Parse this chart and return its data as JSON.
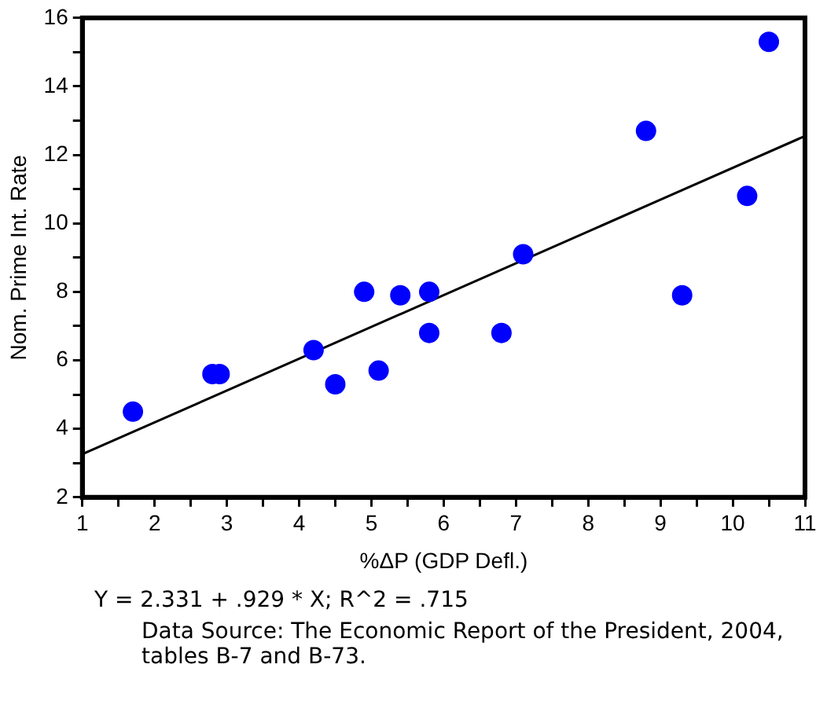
{
  "chart_data": {
    "type": "scatter",
    "xlabel": "%ΔP (GDP Defl.)",
    "ylabel": "Nom. Prime Int. Rate",
    "series": [
      {
        "marker": "circle",
        "color": "#0000ff",
        "x": [
          1.7,
          2.8,
          2.9,
          4.2,
          4.5,
          5.1,
          4.9,
          5.4,
          5.8,
          5.8,
          6.8,
          7.1,
          8.8,
          9.3,
          10.2,
          10.5
        ],
        "values": [
          4.5,
          5.6,
          5.6,
          6.3,
          5.3,
          5.7,
          8.0,
          7.9,
          8.0,
          6.8,
          6.8,
          9.1,
          12.7,
          7.9,
          10.8,
          15.3
        ]
      },
      {
        "type": "line",
        "color": "#000000",
        "x": [
          1,
          11
        ],
        "values": [
          3.26,
          12.55
        ]
      }
    ],
    "xlim": [
      1,
      11
    ],
    "ylim": [
      2,
      16
    ],
    "xticks": [
      1,
      {
        "value": 1.5,
        "label": null
      },
      2,
      {
        "value": 2.5,
        "label": null
      },
      3,
      {
        "value": 3.5,
        "label": null
      },
      4,
      {
        "value": 4.5,
        "label": null
      },
      5,
      {
        "value": 5.5,
        "label": null
      },
      6,
      {
        "value": 6.5,
        "label": null
      },
      7,
      {
        "value": 7.5,
        "label": null
      },
      8,
      {
        "value": 8.5,
        "label": null
      },
      9,
      {
        "value": 9.5,
        "label": null
      },
      10,
      {
        "value": 10.5,
        "label": null
      },
      11
    ],
    "yticks": [
      2,
      {
        "value": 3,
        "label": null
      },
      4,
      {
        "value": 5,
        "label": null
      },
      6,
      {
        "value": 7,
        "label": null
      },
      8,
      {
        "value": 9,
        "label": null
      },
      10,
      {
        "value": 11,
        "label": null
      },
      12,
      {
        "value": 13,
        "label": null
      },
      14,
      {
        "value": 15,
        "label": null
      },
      16
    ],
    "grid": false,
    "legend": false,
    "line_style": "solid",
    "annotations": [
      "Y = 2.331 + .929 * X; R^2 = .715",
      "Data Source: The Economic Report of the President, 2004, tables B-7 and B-73."
    ]
  }
}
